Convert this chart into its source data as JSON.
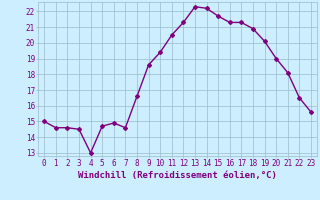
{
  "x": [
    0,
    1,
    2,
    3,
    4,
    5,
    6,
    7,
    8,
    9,
    10,
    11,
    12,
    13,
    14,
    15,
    16,
    17,
    18,
    19,
    20,
    21,
    22,
    23
  ],
  "y": [
    15.0,
    14.6,
    14.6,
    14.5,
    13.0,
    14.7,
    14.9,
    14.6,
    16.6,
    18.6,
    19.4,
    20.5,
    21.3,
    22.3,
    22.2,
    21.7,
    21.3,
    21.3,
    20.9,
    20.1,
    19.0,
    18.1,
    16.5,
    15.6
  ],
  "line_color": "#800080",
  "marker": "D",
  "marker_size": 2,
  "bg_color": "#cceeff",
  "grid_color": "#99bbcc",
  "xlabel": "Windchill (Refroidissement éolien,°C)",
  "ylim": [
    12.8,
    22.6
  ],
  "xlim": [
    -0.5,
    23.5
  ],
  "yticks": [
    13,
    14,
    15,
    16,
    17,
    18,
    19,
    20,
    21,
    22
  ],
  "xticks": [
    0,
    1,
    2,
    3,
    4,
    5,
    6,
    7,
    8,
    9,
    10,
    11,
    12,
    13,
    14,
    15,
    16,
    17,
    18,
    19,
    20,
    21,
    22,
    23
  ],
  "xlabel_fontsize": 6.5,
  "tick_fontsize": 5.5,
  "line_width": 1.0
}
